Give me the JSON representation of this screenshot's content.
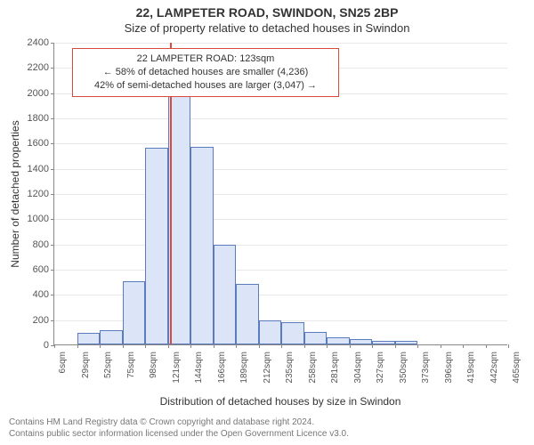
{
  "title_line1": "22, LAMPETER ROAD, SWINDON, SN25 2BP",
  "title_line2": "Size of property relative to detached houses in Swindon",
  "y_axis_label": "Number of detached properties",
  "x_axis_label": "Distribution of detached houses by size in Swindon",
  "attribution_line1": "Contains HM Land Registry data © Crown copyright and database right 2024.",
  "attribution_line2": "Contains public sector information licensed under the Open Government Licence v3.0.",
  "chart": {
    "type": "histogram",
    "ylim": [
      0,
      2400
    ],
    "ytick_step": 200,
    "background_color": "#ffffff",
    "grid_color": "#e8e8e8",
    "axis_color": "#888888",
    "tick_font_size": 11,
    "label_font_size": 12,
    "bar_fill": "#dbe5f7",
    "bar_border": "#5b7bbd",
    "bar_border_width": 1,
    "bar_width_ratio": 1.0,
    "marker_line_color": "#d94a3a",
    "marker_line_width": 2,
    "marker_value": 123,
    "x_tick_labels": [
      "6sqm",
      "29sqm",
      "52sqm",
      "75sqm",
      "98sqm",
      "121sqm",
      "144sqm",
      "166sqm",
      "189sqm",
      "212sqm",
      "235sqm",
      "258sqm",
      "281sqm",
      "304sqm",
      "327sqm",
      "350sqm",
      "373sqm",
      "396sqm",
      "419sqm",
      "442sqm",
      "465sqm"
    ],
    "bar_values": [
      0,
      90,
      110,
      500,
      1560,
      2180,
      1570,
      790,
      480,
      190,
      180,
      100,
      60,
      40,
      30,
      30,
      0,
      0,
      0,
      0
    ],
    "info_box": {
      "line1": "22 LAMPETER ROAD: 123sqm",
      "line2": "← 58% of detached houses are smaller (4,236)",
      "line3": "42% of semi-detached houses are larger (3,047) →",
      "border_color": "#d94a3a",
      "border_width": 1,
      "background": "#ffffff",
      "font_size": 11
    }
  }
}
